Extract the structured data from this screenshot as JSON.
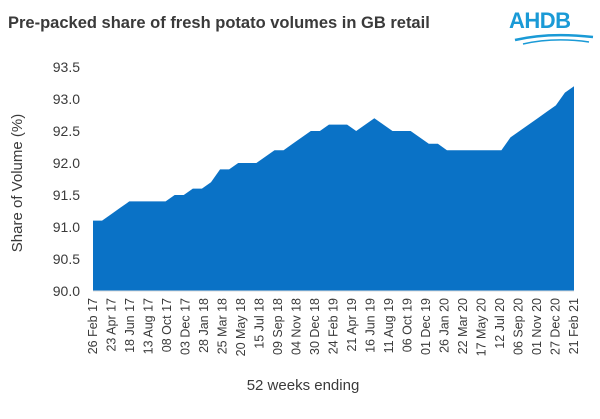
{
  "title": "Pre-packed share of fresh potato volumes in GB retail",
  "logo": {
    "text": "AHDB"
  },
  "colors": {
    "area": "#0a72c6",
    "text": "#3a3a3a",
    "logo": "#1a9ad6"
  },
  "chart_data": {
    "type": "area",
    "title": "Pre-packed share of fresh potato volumes in GB retail",
    "xlabel": "52 weeks ending",
    "ylabel": "Share of Volume (%)",
    "ylim": [
      90.0,
      93.5
    ],
    "yticks": [
      "90.0",
      "90.5",
      "91.0",
      "91.5",
      "92.0",
      "92.5",
      "93.0",
      "93.5"
    ],
    "grid": false,
    "x_tick_labels": [
      "26 Feb 17",
      "23 Apr 17",
      "18 Jun 17",
      "13 Aug 17",
      "08 Oct 17",
      "03 Dec 17",
      "28 Jan 18",
      "25 Mar 18",
      "20 May 18",
      "15 Jul 18",
      "09 Sep 18",
      "04 Nov 18",
      "30 Dec 18",
      "24 Feb 19",
      "21 Apr 19",
      "16 Jun 19",
      "11 Aug 19",
      "06 Oct 19",
      "01 Dec 19",
      "26 Jan 20",
      "22 Mar 20",
      "17 May 20",
      "12 Jul 20",
      "06 Sep 20",
      "01 Nov 20",
      "27 Dec 20",
      "21 Feb 21"
    ],
    "series": [
      {
        "values": [
          91.1,
          91.1,
          91.2,
          91.3,
          91.4,
          91.4,
          91.4,
          91.4,
          91.4,
          91.5,
          91.5,
          91.6,
          91.6,
          91.7,
          91.9,
          91.9,
          92.0,
          92.0,
          92.0,
          92.1,
          92.2,
          92.2,
          92.3,
          92.4,
          92.5,
          92.5,
          92.6,
          92.6,
          92.6,
          92.5,
          92.6,
          92.7,
          92.6,
          92.5,
          92.5,
          92.5,
          92.4,
          92.3,
          92.3,
          92.2,
          92.2,
          92.2,
          92.2,
          92.2,
          92.2,
          92.2,
          92.4,
          92.5,
          92.6,
          92.7,
          92.8,
          92.9,
          93.1,
          93.2
        ]
      }
    ]
  }
}
